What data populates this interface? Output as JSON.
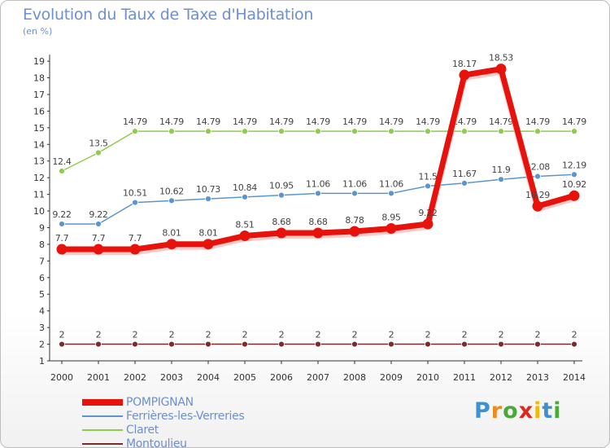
{
  "title": "Evolution du Taux de Taxe d'Habitation",
  "subtitle": "(en %)",
  "logo": {
    "letters": [
      "P",
      "r",
      "o",
      "x",
      "i",
      "t",
      "i"
    ],
    "colors": [
      "#3f8fd3",
      "#f08a1f",
      "#48a93a",
      "#e1261c",
      "#f5b800",
      "#3f8fd3",
      "#48a93a"
    ]
  },
  "chart_data": {
    "type": "line",
    "x": [
      "2000",
      "2001",
      "2002",
      "2003",
      "2004",
      "2005",
      "2006",
      "2007",
      "2008",
      "2009",
      "2010",
      "2011",
      "2012",
      "2013",
      "2014"
    ],
    "ylim": [
      1,
      19
    ],
    "yticks": [
      "1",
      "2",
      "3",
      "4",
      "5",
      "6",
      "7",
      "8",
      "9",
      "10",
      "11",
      "12",
      "13",
      "14",
      "15",
      "16",
      "17",
      "18",
      "19"
    ],
    "grid": false,
    "legend_position": "bottom-left",
    "series": [
      {
        "name": "Montoulieu",
        "color": "#7a2b2b",
        "values": [
          2,
          2,
          2,
          2,
          2,
          2,
          2,
          2,
          2,
          2,
          2,
          2,
          2,
          2,
          2
        ],
        "labels": [
          "2",
          "2",
          "2",
          "2",
          "2",
          "2",
          "2",
          "2",
          "2",
          "2",
          "2",
          "2",
          "2",
          "2",
          "2"
        ]
      },
      {
        "name": "Claret",
        "color": "#8ccd4a",
        "values": [
          12.4,
          13.5,
          14.79,
          14.79,
          14.79,
          14.79,
          14.79,
          14.79,
          14.79,
          14.79,
          14.79,
          14.79,
          14.79,
          14.79,
          14.79
        ],
        "labels": [
          "12.4",
          "13.5",
          "14.79",
          "14.79",
          "14.79",
          "14.79",
          "14.79",
          "14.79",
          "14.79",
          "14.79",
          "14.79",
          "14.79",
          "14.79",
          "14.79",
          "14.79"
        ]
      },
      {
        "name": "Ferrières-les-Verreries",
        "color": "#5b95d0",
        "values": [
          9.22,
          9.22,
          10.51,
          10.62,
          10.73,
          10.84,
          10.95,
          11.06,
          11.06,
          11.06,
          11.5,
          11.67,
          11.9,
          12.08,
          12.19
        ],
        "labels": [
          "9.22",
          "9.22",
          "10.51",
          "10.62",
          "10.73",
          "10.84",
          "10.95",
          "11.06",
          "11.06",
          "11.06",
          "11.5",
          "11.67",
          "11.9",
          "12.08",
          "12.19"
        ]
      },
      {
        "name": "POMPIGNAN",
        "color": "#e8120c",
        "values": [
          7.7,
          7.7,
          7.7,
          8.01,
          8.01,
          8.51,
          8.68,
          8.68,
          8.78,
          8.95,
          9.22,
          18.17,
          18.53,
          10.29,
          10.92
        ],
        "labels": [
          "7.7",
          "7.7",
          "7.7",
          "8.01",
          "8.01",
          "8.51",
          "8.68",
          "8.68",
          "8.78",
          "8.95",
          "9.22",
          "18.17",
          "18.53",
          "10.29",
          "10.92"
        ]
      }
    ],
    "legend": [
      "POMPIGNAN",
      "Ferrières-les-Verreries",
      "Claret",
      "Montoulieu"
    ]
  }
}
